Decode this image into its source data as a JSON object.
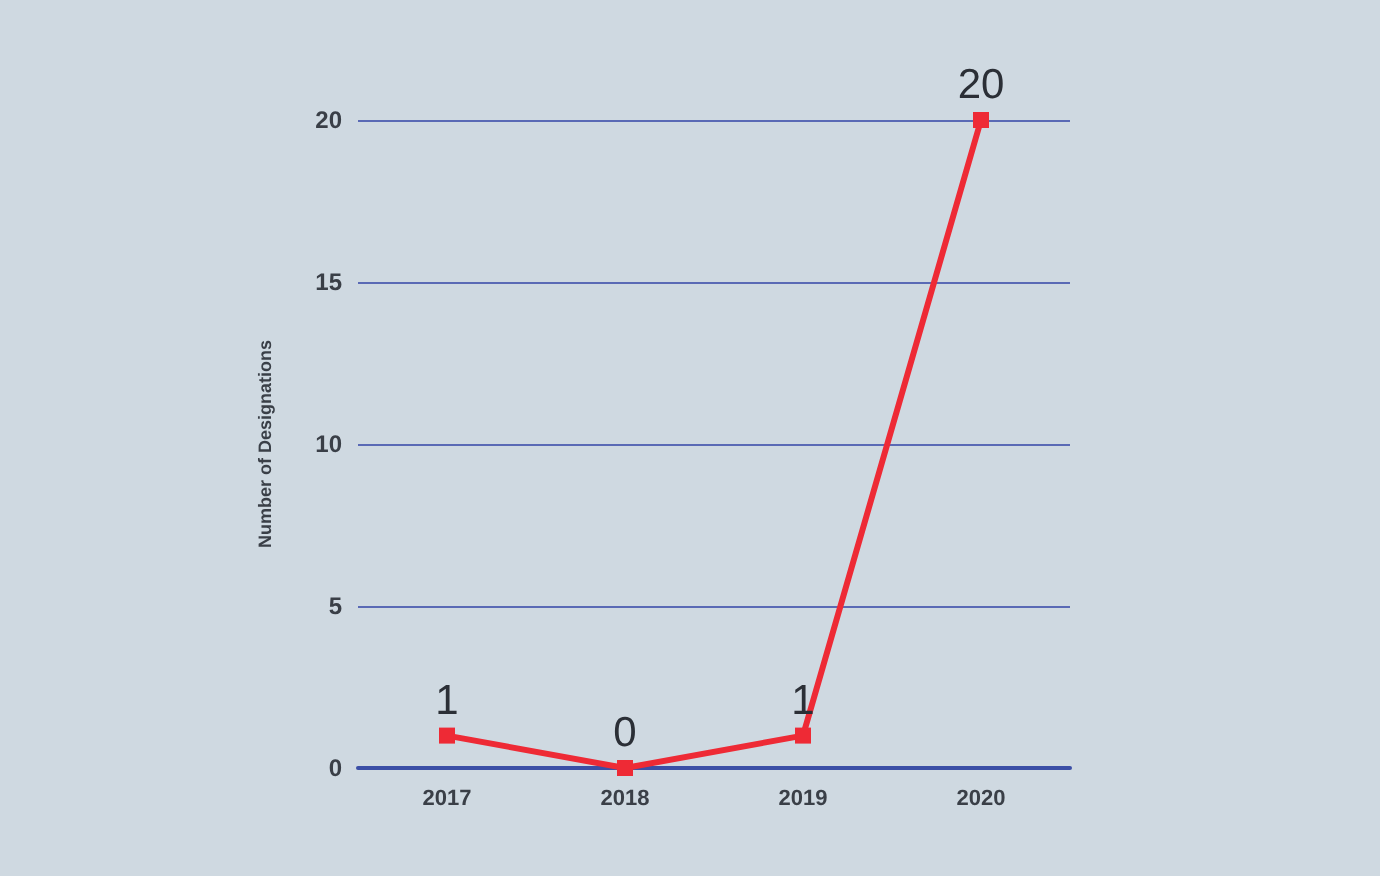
{
  "chart_data": {
    "type": "line",
    "ylabel": "Number of Designations",
    "categories": [
      "2017",
      "2018",
      "2019",
      "2020"
    ],
    "series": [
      {
        "color": "#ee2a35",
        "values": [
          1,
          0,
          1,
          20
        ]
      }
    ],
    "ylim": [
      0,
      20
    ],
    "yticks": [
      0,
      5,
      10,
      15,
      20
    ],
    "grid": "y",
    "marker": "square",
    "line_style": "solid",
    "data_labels": true
  }
}
